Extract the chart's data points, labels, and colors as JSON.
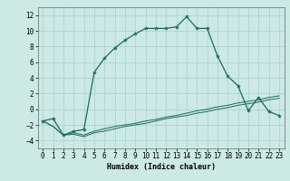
{
  "xlabel": "Humidex (Indice chaleur)",
  "bg_color": "#cce9e6",
  "grid_color": "#aad4d0",
  "line_color": "#1a6b5a",
  "xlim": [
    -0.5,
    23.5
  ],
  "ylim": [
    -5,
    13
  ],
  "xticks": [
    0,
    1,
    2,
    3,
    4,
    5,
    6,
    7,
    8,
    9,
    10,
    11,
    12,
    13,
    14,
    15,
    16,
    17,
    18,
    19,
    20,
    21,
    22,
    23
  ],
  "yticks": [
    -4,
    -2,
    0,
    2,
    4,
    6,
    8,
    10,
    12
  ],
  "series1_x": [
    0,
    1,
    2,
    3,
    4,
    5,
    6,
    7,
    8,
    9,
    10,
    11,
    12,
    13,
    14,
    15,
    16,
    17,
    18,
    19,
    20,
    21,
    22,
    23
  ],
  "series1_y": [
    -1.5,
    -1.2,
    -3.3,
    -2.8,
    -2.6,
    4.7,
    6.5,
    7.8,
    8.8,
    9.6,
    10.3,
    10.3,
    10.3,
    10.5,
    11.8,
    10.3,
    10.3,
    6.8,
    4.2,
    3.0,
    -0.2,
    1.5,
    -0.3,
    -0.8
  ],
  "series2_x": [
    0,
    1,
    2,
    3,
    4,
    5,
    6,
    7,
    8,
    9,
    10,
    11,
    12,
    13,
    14,
    15,
    16,
    17,
    18,
    19,
    20,
    21,
    22,
    23
  ],
  "series2_y": [
    -1.5,
    -2.2,
    -3.3,
    -3.0,
    -3.3,
    -2.8,
    -2.5,
    -2.2,
    -2.0,
    -1.8,
    -1.5,
    -1.3,
    -1.0,
    -0.8,
    -0.5,
    -0.2,
    0.0,
    0.3,
    0.5,
    0.8,
    1.0,
    1.2,
    1.5,
    1.7
  ],
  "series3_x": [
    0,
    1,
    2,
    3,
    4,
    5,
    6,
    7,
    8,
    9,
    10,
    11,
    12,
    13,
    14,
    15,
    16,
    17,
    18,
    19,
    20,
    21,
    22,
    23
  ],
  "series3_y": [
    -1.5,
    -2.2,
    -3.3,
    -3.2,
    -3.5,
    -3.0,
    -2.8,
    -2.5,
    -2.2,
    -2.0,
    -1.8,
    -1.5,
    -1.2,
    -1.0,
    -0.8,
    -0.5,
    -0.3,
    0.0,
    0.2,
    0.5,
    0.7,
    0.9,
    1.2,
    1.4
  ],
  "tick_fontsize": 5.5,
  "xlabel_fontsize": 6.0
}
